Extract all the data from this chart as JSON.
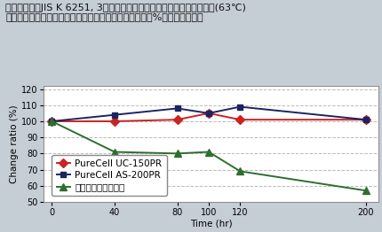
{
  "title_line1": "各サンプルをJIS K 6251, 3号ダンベルにて打ち抜きフェードメーター(63℃)",
  "title_line2": "に下記時間暴露した後、引張強度を測定しその保持率（%）で評価する。",
  "xlabel": "Time (hr)",
  "ylabel": "Change ratio (%)",
  "background_color": "#c5cdd5",
  "plot_bg_color": "#ffffff",
  "x": [
    0,
    40,
    80,
    100,
    120,
    200
  ],
  "series": [
    {
      "label": "PureCell UC-150PR",
      "color": "#cc2222",
      "marker": "D",
      "markersize": 5,
      "y": [
        100,
        100,
        101,
        105,
        101,
        101
      ]
    },
    {
      "label": "PureCell AS-200PR",
      "color": "#1a2460",
      "marker": "s",
      "markersize": 5,
      "y": [
        100,
        104,
        108,
        105,
        109,
        101
      ]
    },
    {
      "label": "エーテル系ウレタン",
      "color": "#2e6e2e",
      "marker": "^",
      "markersize": 6,
      "y": [
        100,
        81,
        80,
        81,
        69,
        57
      ]
    }
  ],
  "ylim": [
    50,
    122
  ],
  "yticks": [
    50,
    60,
    70,
    80,
    90,
    100,
    110,
    120
  ],
  "xticks": [
    0,
    40,
    80,
    100,
    120,
    200
  ],
  "grid_color": "#aaaaaa",
  "grid_style": "--",
  "grid_alpha": 0.8,
  "title_fontsize": 8.0,
  "axis_label_fontsize": 7.5,
  "tick_fontsize": 7.0,
  "legend_fontsize": 7.5
}
